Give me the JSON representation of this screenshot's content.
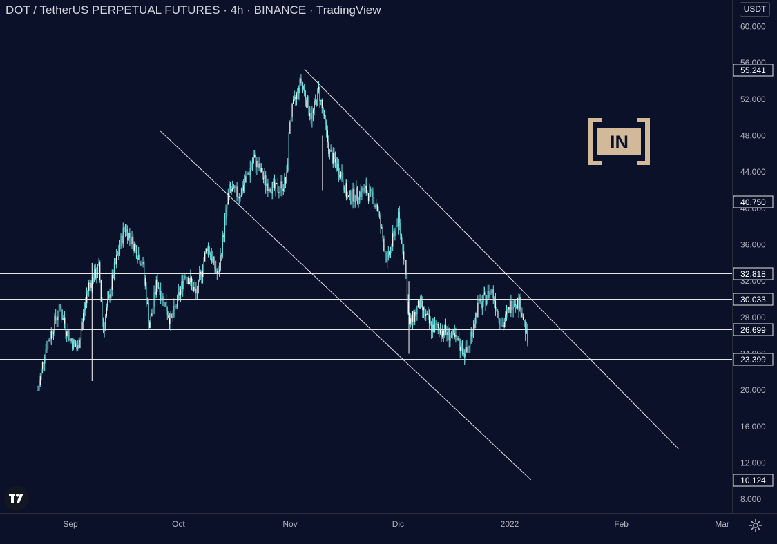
{
  "header": {
    "title": "DOT / TetherUS PERPETUAL FUTURES · 4h · BINANCE · TradingView",
    "currency_button": "USDT"
  },
  "watermark": {
    "text": "IN",
    "color": "#d2b99a"
  },
  "icons": {
    "logo": "tradingview-logo-icon",
    "settings": "gear-icon"
  },
  "colors": {
    "background": "#0b1128",
    "candles": "#6ee6e6",
    "lines": "#e6e6e6",
    "axis_text": "#b2b5be",
    "label_bg": "#0b1128"
  },
  "chart_data": {
    "type": "candlestick",
    "title": "DOT / TetherUS PERPETUAL FUTURES · 4h · BINANCE · TradingView",
    "y_axis": {
      "ticks": [
        "60.000",
        "56.000",
        "52.000",
        "48.000",
        "44.000",
        "40.000",
        "36.000",
        "32.000",
        "28.000",
        "24.000",
        "20.000",
        "16.000",
        "12.000",
        "8.000"
      ],
      "range": [
        6.5,
        63.0
      ]
    },
    "x_axis": {
      "ticks": [
        "Sep",
        "Oct",
        "Nov",
        "Dic",
        "2022",
        "Feb",
        "Mar"
      ]
    },
    "price_path": [
      [
        "2021-08-23",
        20.0
      ],
      [
        "2021-08-25",
        24.5
      ],
      [
        "2021-08-29",
        29.0
      ],
      [
        "2021-09-01",
        25.5
      ],
      [
        "2021-09-03",
        24.5
      ],
      [
        "2021-09-06",
        31.5
      ],
      [
        "2021-09-09",
        33.5
      ],
      [
        "2021-09-10",
        26.5
      ],
      [
        "2021-09-13",
        33.0
      ],
      [
        "2021-09-16",
        38.0
      ],
      [
        "2021-09-21",
        34.0
      ],
      [
        "2021-09-23",
        27.0
      ],
      [
        "2021-09-25",
        32.0
      ],
      [
        "2021-09-29",
        27.5
      ],
      [
        "2021-10-03",
        33.0
      ],
      [
        "2021-10-06",
        30.5
      ],
      [
        "2021-10-09",
        36.0
      ],
      [
        "2021-10-12",
        32.5
      ],
      [
        "2021-10-15",
        42.0
      ],
      [
        "2021-10-18",
        41.5
      ],
      [
        "2021-10-22",
        45.5
      ],
      [
        "2021-10-25",
        43.0
      ],
      [
        "2021-10-28",
        42.0
      ],
      [
        "2021-10-31",
        43.0
      ],
      [
        "2021-11-01",
        50.0
      ],
      [
        "2021-11-04",
        54.0
      ],
      [
        "2021-11-07",
        50.0
      ],
      [
        "2021-11-09",
        53.0
      ],
      [
        "2021-11-12",
        46.0
      ],
      [
        "2021-11-15",
        44.0
      ],
      [
        "2021-11-17",
        41.0
      ],
      [
        "2021-11-19",
        41.5
      ],
      [
        "2021-11-22",
        42.0
      ],
      [
        "2021-11-25",
        40.5
      ],
      [
        "2021-11-28",
        34.0
      ],
      [
        "2021-12-01",
        39.0
      ],
      [
        "2021-12-03",
        34.0
      ],
      [
        "2021-12-04",
        27.0
      ],
      [
        "2021-12-07",
        29.5
      ],
      [
        "2021-12-10",
        27.0
      ],
      [
        "2021-12-14",
        26.5
      ],
      [
        "2021-12-17",
        25.5
      ],
      [
        "2021-12-20",
        24.0
      ],
      [
        "2021-12-23",
        29.0
      ],
      [
        "2021-12-27",
        31.0
      ],
      [
        "2021-12-30",
        27.0
      ],
      [
        "2022-01-02",
        30.0
      ],
      [
        "2022-01-04",
        29.5
      ],
      [
        "2022-01-06",
        25.3
      ]
    ],
    "annotations": {
      "horizontal_levels": [
        55.241,
        40.75,
        32.818,
        30.033,
        26.699,
        23.399,
        10.124
      ],
      "level_labels": [
        "55.241",
        "40.750",
        "32.818",
        "30.033",
        "26.699",
        "23.399",
        "10.124"
      ],
      "trendlines": [
        {
          "from": [
            "2021-11-05",
            55.3
          ],
          "to": [
            "2022-02-17",
            13.5
          ]
        },
        {
          "from": [
            "2021-09-26",
            48.5
          ],
          "to": [
            "2022-01-07",
            10.1
          ]
        }
      ]
    },
    "grid": false,
    "legend": "none"
  }
}
